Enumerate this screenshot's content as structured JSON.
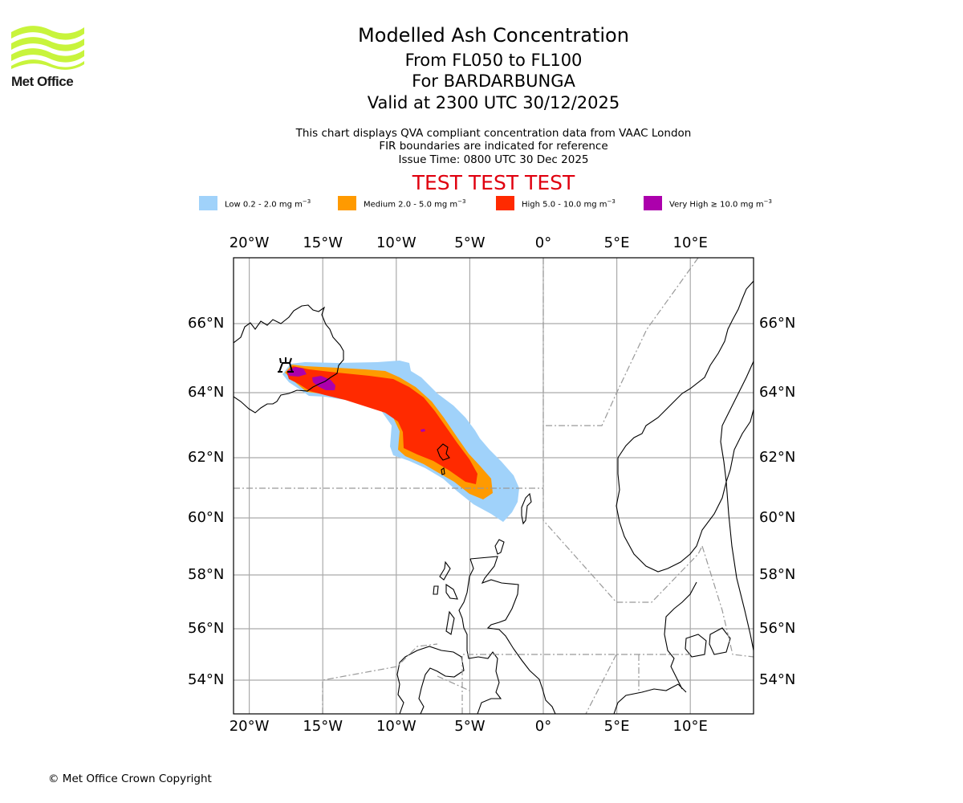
{
  "logo": {
    "name": "Met Office",
    "colors": {
      "wave": "#c8f43c"
    }
  },
  "header": {
    "title": "Modelled Ash Concentration",
    "level_range": "From FL050 to FL100",
    "volcano": "For BARDARBUNGA",
    "validity": "Valid at 2300 UTC 30/12/2025",
    "note_1": "This chart displays QVA compliant concentration data from VAAC London",
    "note_2": "FIR boundaries are indicated for reference",
    "issue_time": "Issue Time: 0800 UTC 30 Dec 2025",
    "test_banner": "TEST TEST TEST",
    "test_color": "#e0000f"
  },
  "legend": [
    {
      "label": "Low 0.2 - 2.0 mg m",
      "unit_sup": "−3",
      "color": "#a0d2fa"
    },
    {
      "label": "Medium 2.0 - 5.0 mg m",
      "unit_sup": "−3",
      "color": "#ff9a00"
    },
    {
      "label": "High 5.0 - 10.0 mg m",
      "unit_sup": "−3",
      "color": "#ff2a00"
    },
    {
      "label": "Very High  ≥  10.0 mg m",
      "unit_sup": "−3",
      "color": "#ac00ac"
    }
  ],
  "map": {
    "type": "map",
    "projection": "plate-carree-like",
    "lon_ticks": [
      "20°W",
      "15°W",
      "10°W",
      "5°W",
      "0°",
      "5°E",
      "10°E"
    ],
    "lon_values": [
      -20,
      -15,
      -10,
      -5,
      0,
      5,
      10
    ],
    "lat_ticks": [
      "66°N",
      "64°N",
      "62°N",
      "60°N",
      "58°N",
      "56°N",
      "54°N"
    ],
    "lat_values": [
      66,
      64,
      62,
      60,
      58,
      56,
      54
    ],
    "extent": {
      "lon_min": -21.1,
      "lon_max": 14.3,
      "lat_min": 52.9,
      "lat_max": 67.8
    },
    "grid": true,
    "source_marker": {
      "name": "Bardarbunga volcano",
      "icon": "volcano-icon",
      "lon": -17.5,
      "lat": 64.6
    },
    "ash_levels": [
      "low",
      "medium",
      "high",
      "very_high"
    ],
    "fir_boundaries": true
  },
  "footer": {
    "copyright": "© Met Office Crown Copyright"
  }
}
